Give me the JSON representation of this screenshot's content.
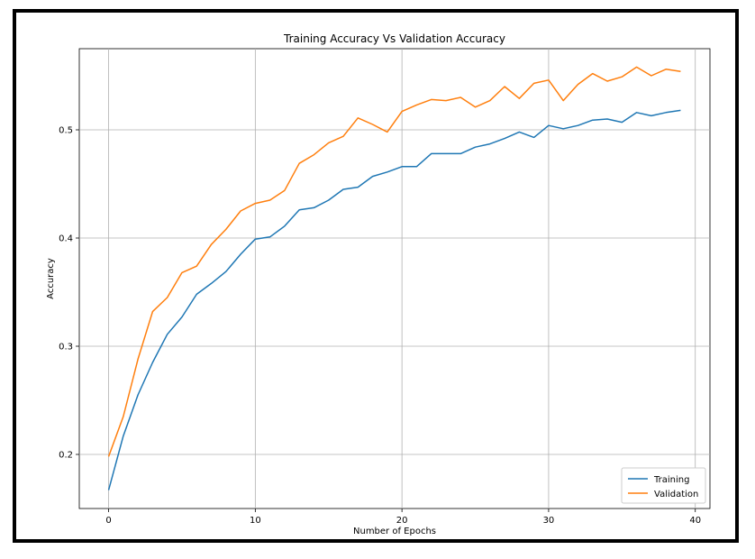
{
  "chart_data": {
    "type": "line",
    "title": "Training Accuracy Vs Validation Accuracy",
    "xlabel": "Number of Epochs",
    "ylabel": "Accuracy",
    "xlim": [
      -2,
      41
    ],
    "ylim": [
      0.15,
      0.575
    ],
    "xticks": [
      0,
      10,
      20,
      30,
      40
    ],
    "yticks": [
      0.2,
      0.3,
      0.4,
      0.5
    ],
    "ytick_labels": [
      "0.2",
      "0.3",
      "0.4",
      "0.5"
    ],
    "grid": true,
    "legend_position": "lower-right",
    "x": [
      0,
      1,
      2,
      3,
      4,
      5,
      6,
      7,
      8,
      9,
      10,
      11,
      12,
      13,
      14,
      15,
      16,
      17,
      18,
      19,
      20,
      21,
      22,
      23,
      24,
      25,
      26,
      27,
      28,
      29,
      30,
      31,
      32,
      33,
      34,
      35,
      36,
      37,
      38,
      39
    ],
    "series": [
      {
        "name": "Training",
        "color": "#1f77b4",
        "values": [
          0.167,
          0.217,
          0.255,
          0.285,
          0.311,
          0.327,
          0.348,
          0.358,
          0.369,
          0.385,
          0.399,
          0.401,
          0.411,
          0.426,
          0.428,
          0.435,
          0.445,
          0.447,
          0.457,
          0.461,
          0.466,
          0.466,
          0.478,
          0.478,
          0.478,
          0.484,
          0.487,
          0.492,
          0.498,
          0.493,
          0.504,
          0.501,
          0.504,
          0.509,
          0.51,
          0.507,
          0.516,
          0.513,
          0.516,
          0.518
        ]
      },
      {
        "name": "Validation",
        "color": "#ff7f0e",
        "values": [
          0.198,
          0.235,
          0.288,
          0.332,
          0.345,
          0.368,
          0.374,
          0.394,
          0.408,
          0.425,
          0.432,
          0.435,
          0.444,
          0.469,
          0.477,
          0.488,
          0.494,
          0.511,
          0.505,
          0.498,
          0.517,
          0.523,
          0.528,
          0.527,
          0.53,
          0.521,
          0.527,
          0.54,
          0.529,
          0.543,
          0.546,
          0.527,
          0.542,
          0.552,
          0.545,
          0.549,
          0.558,
          0.55,
          0.556,
          0.554
        ]
      }
    ]
  }
}
